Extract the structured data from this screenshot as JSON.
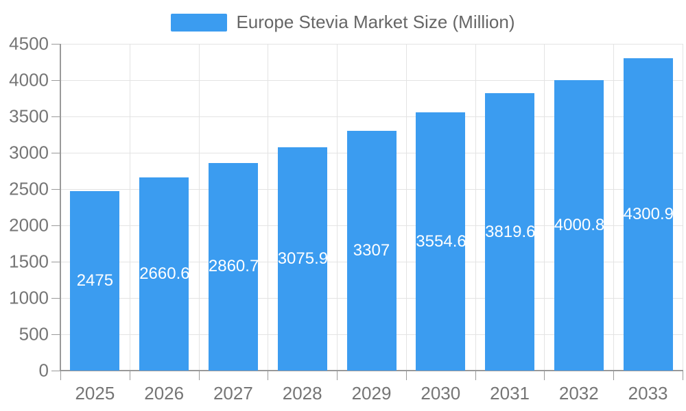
{
  "legend": {
    "label": "Europe Stevia Market Size (Million)"
  },
  "chart_data": {
    "type": "bar",
    "title": "Europe Stevia Market Size (Million)",
    "legend_label": "Europe Stevia Market Size (Million)",
    "legend_position": "top-center",
    "categories": [
      "2025",
      "2026",
      "2027",
      "2028",
      "2029",
      "2030",
      "2031",
      "2032",
      "2033"
    ],
    "series": [
      {
        "name": "Europe Stevia Market Size (Million)",
        "values": [
          2475,
          2660.63,
          2860.74,
          3075.96,
          3307,
          3554.61,
          3819.67,
          4000.87,
          4300.95
        ],
        "value_labels": [
          "2475",
          "2660.63",
          "2860.74",
          "3075.96",
          "3307",
          "3554.61",
          "3819.67",
          "4000.87",
          "4300.95"
        ]
      }
    ],
    "xlabel": "",
    "ylabel": "",
    "ylim": [
      0,
      4500
    ],
    "ytick_step": 500,
    "ytick_labels": [
      "0",
      "500",
      "1000",
      "1500",
      "2000",
      "2500",
      "3000",
      "3500",
      "4000",
      "4500"
    ],
    "grid": true,
    "colors": {
      "bar": "#3B9CF0",
      "bar_label_text": "#ffffff",
      "grid_line": "#e3e3e3",
      "axis_line": "#999999",
      "axis_text": "#757575",
      "legend_text": "#666666"
    }
  }
}
